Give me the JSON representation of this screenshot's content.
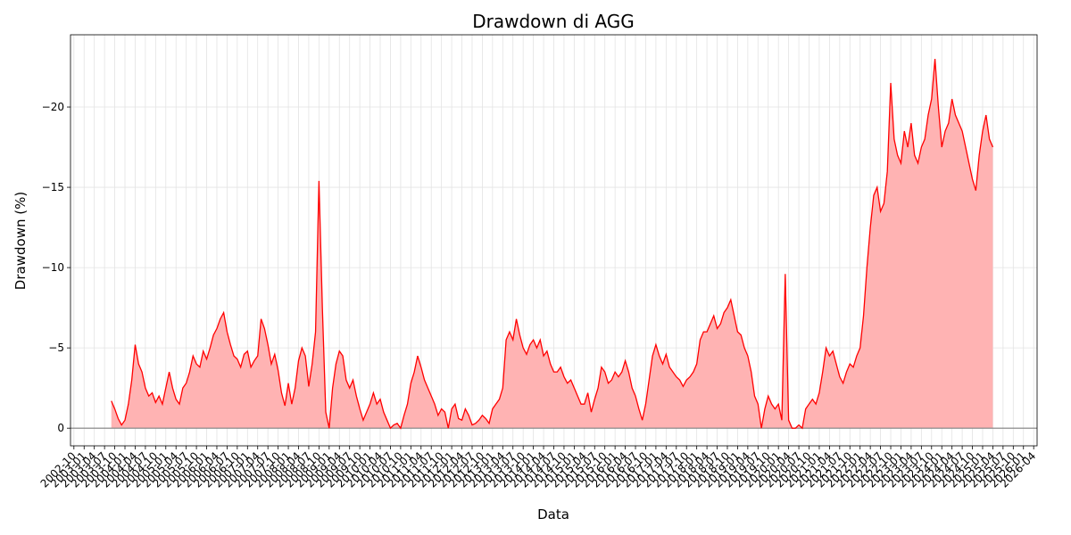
{
  "chart_data": {
    "type": "area",
    "title": "Drawdown di AGG",
    "xlabel": "Data",
    "ylabel": "Drawdown (%)",
    "line_color": "#ff0000",
    "fill_color": "#ffb3b3",
    "grid": true,
    "ylim": [
      1.1,
      -24.5
    ],
    "yticks": [
      0,
      {
        "value": -5,
        "label": "−5"
      },
      {
        "value": -10,
        "label": "−10"
      },
      {
        "value": -15,
        "label": "−15"
      },
      {
        "value": -20,
        "label": "−20"
      }
    ],
    "xlim": [
      "2002-09",
      "2026-05"
    ],
    "xticks": [
      "2002-10",
      "2003-01",
      "2003-04",
      "2003-07",
      "2003-10",
      "2004-01",
      "2004-04",
      "2004-07",
      "2004-10",
      "2005-01",
      "2005-04",
      "2005-07",
      "2005-10",
      "2006-01",
      "2006-04",
      "2006-07",
      "2006-10",
      "2007-01",
      "2007-04",
      "2007-07",
      "2007-10",
      "2008-01",
      "2008-04",
      "2008-07",
      "2008-10",
      "2009-01",
      "2009-04",
      "2009-07",
      "2009-10",
      "2010-01",
      "2010-04",
      "2010-07",
      "2010-10",
      "2011-01",
      "2011-04",
      "2011-07",
      "2011-10",
      "2012-01",
      "2012-04",
      "2012-07",
      "2012-10",
      "2013-01",
      "2013-04",
      "2013-07",
      "2013-10",
      "2014-01",
      "2014-04",
      "2014-07",
      "2014-10",
      "2015-01",
      "2015-04",
      "2015-07",
      "2015-10",
      "2016-01",
      "2016-04",
      "2016-07",
      "2016-10",
      "2017-01",
      "2017-04",
      "2017-07",
      "2017-10",
      "2018-01",
      "2018-04",
      "2018-07",
      "2018-10",
      "2019-01",
      "2019-04",
      "2019-07",
      "2019-10",
      "2020-01",
      "2020-04",
      "2020-07",
      "2020-10",
      "2021-01",
      "2021-04",
      "2021-07",
      "2021-10",
      "2022-01",
      "2022-04",
      "2022-07",
      "2022-10",
      "2023-01",
      "2023-04",
      "2023-07",
      "2023-10",
      "2024-01",
      "2024-04",
      "2024-07",
      "2024-10",
      "2025-01",
      "2025-04",
      "2025-07",
      "2025-10",
      "2026-01",
      "2026-04"
    ],
    "x": [
      "2003-09",
      "2003-10",
      "2003-11",
      "2003-12",
      "2004-01",
      "2004-02",
      "2004-03",
      "2004-04",
      "2004-05",
      "2004-06",
      "2004-07",
      "2004-08",
      "2004-09",
      "2004-10",
      "2004-11",
      "2004-12",
      "2005-01",
      "2005-02",
      "2005-03",
      "2005-04",
      "2005-05",
      "2005-06",
      "2005-07",
      "2005-08",
      "2005-09",
      "2005-10",
      "2005-11",
      "2005-12",
      "2006-01",
      "2006-02",
      "2006-03",
      "2006-04",
      "2006-05",
      "2006-06",
      "2006-07",
      "2006-08",
      "2006-09",
      "2006-10",
      "2006-11",
      "2006-12",
      "2007-01",
      "2007-02",
      "2007-03",
      "2007-04",
      "2007-05",
      "2007-06",
      "2007-07",
      "2007-08",
      "2007-09",
      "2007-10",
      "2007-11",
      "2007-12",
      "2008-01",
      "2008-02",
      "2008-03",
      "2008-04",
      "2008-05",
      "2008-06",
      "2008-07",
      "2008-08",
      "2008-09",
      "2008-10",
      "2008-11",
      "2008-12",
      "2009-01",
      "2009-02",
      "2009-03",
      "2009-04",
      "2009-05",
      "2009-06",
      "2009-07",
      "2009-08",
      "2009-09",
      "2009-10",
      "2009-11",
      "2009-12",
      "2010-01",
      "2010-02",
      "2010-03",
      "2010-04",
      "2010-05",
      "2010-06",
      "2010-07",
      "2010-08",
      "2010-09",
      "2010-10",
      "2010-11",
      "2010-12",
      "2011-01",
      "2011-02",
      "2011-03",
      "2011-04",
      "2011-05",
      "2011-06",
      "2011-07",
      "2011-08",
      "2011-09",
      "2011-10",
      "2011-11",
      "2011-12",
      "2012-01",
      "2012-02",
      "2012-03",
      "2012-04",
      "2012-05",
      "2012-06",
      "2012-07",
      "2012-08",
      "2012-09",
      "2012-10",
      "2012-11",
      "2012-12",
      "2013-01",
      "2013-02",
      "2013-03",
      "2013-04",
      "2013-05",
      "2013-06",
      "2013-07",
      "2013-08",
      "2013-09",
      "2013-10",
      "2013-11",
      "2013-12",
      "2014-01",
      "2014-02",
      "2014-03",
      "2014-04",
      "2014-05",
      "2014-06",
      "2014-07",
      "2014-08",
      "2014-09",
      "2014-10",
      "2014-11",
      "2014-12",
      "2015-01",
      "2015-02",
      "2015-03",
      "2015-04",
      "2015-05",
      "2015-06",
      "2015-07",
      "2015-08",
      "2015-09",
      "2015-10",
      "2015-11",
      "2015-12",
      "2016-01",
      "2016-02",
      "2016-03",
      "2016-04",
      "2016-05",
      "2016-06",
      "2016-07",
      "2016-08",
      "2016-09",
      "2016-10",
      "2016-11",
      "2016-12",
      "2017-01",
      "2017-02",
      "2017-03",
      "2017-04",
      "2017-05",
      "2017-06",
      "2017-07",
      "2017-08",
      "2017-09",
      "2017-10",
      "2017-11",
      "2017-12",
      "2018-01",
      "2018-02",
      "2018-03",
      "2018-04",
      "2018-05",
      "2018-06",
      "2018-07",
      "2018-08",
      "2018-09",
      "2018-10",
      "2018-11",
      "2018-12",
      "2019-01",
      "2019-02",
      "2019-03",
      "2019-04",
      "2019-05",
      "2019-06",
      "2019-07",
      "2019-08",
      "2019-09",
      "2019-10",
      "2019-11",
      "2019-12",
      "2020-01",
      "2020-02",
      "2020-03",
      "2020-04",
      "2020-05",
      "2020-06",
      "2020-07",
      "2020-08",
      "2020-09",
      "2020-10",
      "2020-11",
      "2020-12",
      "2021-01",
      "2021-02",
      "2021-03",
      "2021-04",
      "2021-05",
      "2021-06",
      "2021-07",
      "2021-08",
      "2021-09",
      "2021-10",
      "2021-11",
      "2021-12",
      "2022-01",
      "2022-02",
      "2022-03",
      "2022-04",
      "2022-05",
      "2022-06",
      "2022-07",
      "2022-08",
      "2022-09",
      "2022-10",
      "2022-11",
      "2022-12",
      "2023-01",
      "2023-02",
      "2023-03",
      "2023-04",
      "2023-05",
      "2023-06",
      "2023-07",
      "2023-08",
      "2023-09",
      "2023-10",
      "2023-11",
      "2023-12",
      "2024-01",
      "2024-02",
      "2024-03",
      "2024-04",
      "2024-05",
      "2024-06",
      "2024-07",
      "2024-08",
      "2024-09",
      "2024-10",
      "2024-11",
      "2024-12",
      "2025-01",
      "2025-02",
      "2025-03",
      "2025-04"
    ],
    "values": [
      -1.7,
      -1.2,
      -0.6,
      -0.2,
      -0.5,
      -1.5,
      -3,
      -5.2,
      -4,
      -3.5,
      -2.5,
      -2,
      -2.2,
      -1.6,
      -2,
      -1.5,
      -2.5,
      -3.5,
      -2.5,
      -1.8,
      -1.5,
      -2.5,
      -2.8,
      -3.5,
      -4.5,
      -4,
      -3.8,
      -4.8,
      -4.3,
      -5,
      -5.8,
      -6.2,
      -6.8,
      -7.2,
      -6,
      -5.2,
      -4.5,
      -4.3,
      -3.8,
      -4.6,
      -4.8,
      -3.8,
      -4.2,
      -4.5,
      -6.8,
      -6.2,
      -5.2,
      -4,
      -4.6,
      -3.6,
      -2.2,
      -1.4,
      -2.8,
      -1.5,
      -2.5,
      -4.2,
      -5,
      -4.5,
      -2.6,
      -4,
      -6,
      -15.4,
      -7.5,
      -1,
      0,
      -2.5,
      -4,
      -4.8,
      -4.5,
      -3,
      -2.5,
      -3,
      -2,
      -1.2,
      -0.5,
      -1,
      -1.5,
      -2.2,
      -1.5,
      -1.8,
      -1,
      -0.5,
      0,
      -0.2,
      -0.3,
      0,
      -0.8,
      -1.5,
      -2.8,
      -3.5,
      -4.5,
      -3.8,
      -3,
      -2.5,
      -2,
      -1.5,
      -0.8,
      -1.2,
      -1,
      0,
      -1.2,
      -1.5,
      -0.6,
      -0.5,
      -1.2,
      -0.8,
      -0.2,
      -0.3,
      -0.5,
      -0.8,
      -0.6,
      -0.3,
      -1.2,
      -1.5,
      -1.8,
      -2.5,
      -5.5,
      -6,
      -5.5,
      -6.8,
      -5.8,
      -5,
      -4.6,
      -5.2,
      -5.5,
      -5,
      -5.5,
      -4.5,
      -4.8,
      -4,
      -3.5,
      -3.5,
      -3.8,
      -3.2,
      -2.8,
      -3,
      -2.5,
      -2,
      -1.5,
      -1.5,
      -2.2,
      -1,
      -1.8,
      -2.5,
      -3.8,
      -3.5,
      -2.8,
      -3,
      -3.5,
      -3.2,
      -3.5,
      -4.2,
      -3.5,
      -2.5,
      -2,
      -1.2,
      -0.5,
      -1.5,
      -3,
      -4.5,
      -5.2,
      -4.5,
      -4,
      -4.6,
      -3.8,
      -3.5,
      -3.2,
      -3,
      -2.6,
      -3,
      -3.2,
      -3.5,
      -4,
      -5.5,
      -6,
      -6,
      -6.5,
      -7,
      -6.2,
      -6.5,
      -7.2,
      -7.5,
      -8,
      -7,
      -6,
      -5.8,
      -5,
      -4.5,
      -3.5,
      -2,
      -1.5,
      0,
      -1.2,
      -2,
      -1.5,
      -1.2,
      -1.5,
      -0.5,
      -9.6,
      -0.5,
      0,
      0,
      -0.2,
      0,
      -1.2,
      -1.5,
      -1.8,
      -1.5,
      -2.2,
      -3.5,
      -5,
      -4.5,
      -4.8,
      -4,
      -3.2,
      -2.8,
      -3.5,
      -4,
      -3.8,
      -4.5,
      -5,
      -7,
      -10,
      -12.5,
      -14.5,
      -15,
      -13.5,
      -14,
      -16,
      -21.5,
      -18,
      -17,
      -16.5,
      -18.5,
      -17.5,
      -19,
      -17,
      -16.5,
      -17.5,
      -18,
      -19.5,
      -20.5,
      -23,
      -20,
      -17.5,
      -18.5,
      -19,
      -20.5,
      -19.5,
      -19,
      -18.5,
      -17.5,
      -16.5,
      -15.5,
      -14.8,
      -17,
      -18.5,
      -19.5,
      -18,
      -17.5
    ]
  }
}
